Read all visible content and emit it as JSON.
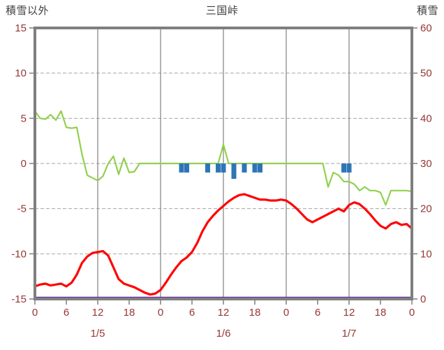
{
  "chart_data": {
    "type": "line",
    "title": "三国峠",
    "left_axis": {
      "label": "積雪以外",
      "min": -15,
      "max": 15,
      "ticks": [
        15,
        10,
        5,
        0,
        -5,
        -10,
        -15
      ]
    },
    "right_axis": {
      "label": "積雪",
      "min": 0,
      "max": 60,
      "ticks": [
        60,
        50,
        40,
        30,
        20,
        10,
        0
      ]
    },
    "x_axis": {
      "min_hour": 0,
      "max_hour": 72,
      "tick_hours": [
        0,
        6,
        12,
        18,
        24,
        30,
        36,
        42,
        48,
        54,
        60,
        66,
        72
      ],
      "tick_labels": [
        "0",
        "6",
        "12",
        "18",
        "0",
        "6",
        "12",
        "18",
        "0",
        "6",
        "12",
        "18",
        "0"
      ],
      "day_labels": [
        {
          "label": "1/5",
          "hour": 12
        },
        {
          "label": "1/6",
          "hour": 36
        },
        {
          "label": "1/7",
          "hour": 60
        }
      ],
      "gridline_hours": [
        12,
        24,
        36,
        48,
        60
      ]
    },
    "series": [
      {
        "name": "green-line",
        "type": "line",
        "axis": "left",
        "color": "#92D050",
        "width": 2.2,
        "values": [
          5.8,
          5.0,
          4.9,
          5.4,
          4.8,
          5.8,
          4.0,
          3.9,
          4.0,
          1.0,
          -1.3,
          -1.6,
          -1.9,
          -1.4,
          0.0,
          0.8,
          -1.2,
          0.6,
          -1.0,
          -0.9,
          0.0,
          0.0,
          0.0,
          0.0,
          0.0,
          0.0,
          0.0,
          0.0,
          0.0,
          0.0,
          0.0,
          0.0,
          0.0,
          0.0,
          0.0,
          0.0,
          2.1,
          0.0,
          0.0,
          0.0,
          0.0,
          0.0,
          0.0,
          0.0,
          0.0,
          0.0,
          0.0,
          0.0,
          0.0,
          0.0,
          0.0,
          0.0,
          0.0,
          0.0,
          0.0,
          0.0,
          -2.6,
          -1.0,
          -1.3,
          -2.0,
          -2.0,
          -2.3,
          -3.0,
          -2.6,
          -3.0,
          -3.0,
          -3.2,
          -4.6,
          -3.0,
          -3.0,
          -3.0,
          -3.0,
          -3.1
        ]
      },
      {
        "name": "red-line",
        "type": "line",
        "axis": "left",
        "color": "#FF0000",
        "width": 3.2,
        "values": [
          -13.6,
          -13.4,
          -13.3,
          -13.5,
          -13.4,
          -13.3,
          -13.6,
          -13.2,
          -12.3,
          -11.0,
          -10.3,
          -9.9,
          -9.8,
          -9.7,
          -10.2,
          -11.5,
          -12.8,
          -13.3,
          -13.5,
          -13.7,
          -14.0,
          -14.3,
          -14.5,
          -14.4,
          -14.0,
          -13.2,
          -12.3,
          -11.5,
          -10.8,
          -10.4,
          -9.8,
          -8.8,
          -7.5,
          -6.5,
          -5.8,
          -5.2,
          -4.7,
          -4.2,
          -3.8,
          -3.5,
          -3.4,
          -3.6,
          -3.8,
          -4.0,
          -4.0,
          -4.1,
          -4.1,
          -4.0,
          -4.1,
          -4.5,
          -5.0,
          -5.6,
          -6.2,
          -6.5,
          -6.2,
          -5.9,
          -5.6,
          -5.3,
          -5.0,
          -5.3,
          -4.6,
          -4.3,
          -4.5,
          -5.0,
          -5.6,
          -6.3,
          -6.9,
          -7.2,
          -6.7,
          -6.5,
          -6.8,
          -6.7,
          -7.2
        ]
      },
      {
        "name": "blue-bars",
        "type": "bar",
        "axis": "left",
        "color": "#2E75B6",
        "points": [
          {
            "hour": 28,
            "value": -1.0
          },
          {
            "hour": 29,
            "value": -1.0
          },
          {
            "hour": 33,
            "value": -1.0
          },
          {
            "hour": 35,
            "value": -1.0
          },
          {
            "hour": 36,
            "value": -1.0
          },
          {
            "hour": 38,
            "value": -1.7
          },
          {
            "hour": 40,
            "value": -1.0
          },
          {
            "hour": 42,
            "value": -1.0
          },
          {
            "hour": 43,
            "value": -1.0
          },
          {
            "hour": 59,
            "value": -1.0
          },
          {
            "hour": 60,
            "value": -1.0
          }
        ]
      },
      {
        "name": "purple-line",
        "type": "line-constant",
        "axis": "right",
        "color": "#7030A0",
        "width": 2.5,
        "value": 0
      }
    ],
    "colors": {
      "frame": "#7F7F7F",
      "grid_solid": "#808080",
      "grid_dashed": "#A6A6A6",
      "axis_text": "#953735",
      "title_text": "#3D3D3D"
    },
    "grid": true,
    "legend": "none"
  }
}
